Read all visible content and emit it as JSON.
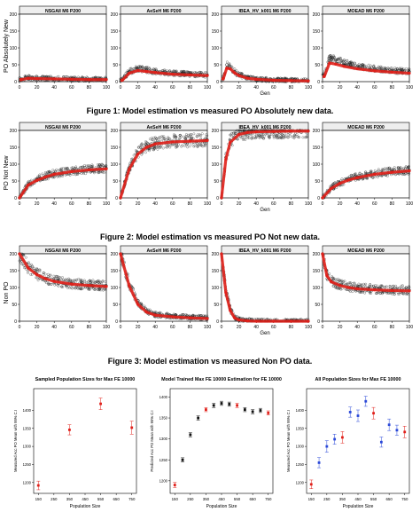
{
  "figures": [
    {
      "caption": "Figure 1: Model estimation vs measured PO Absolutely new data.",
      "ylabel": "PO Absolutely New"
    },
    {
      "caption": "Figure 2: Model estimation vs measured PO Not new data.",
      "ylabel": "PO Not New"
    },
    {
      "caption": "Figure 3: Model estimation vs measured Non PO data.",
      "ylabel": "Non PO"
    }
  ],
  "chart_data": [
    {
      "type": "scatter",
      "figure": 1,
      "title": "NSGAII M6  P200",
      "xlabel": "",
      "ylabel": "PO Absolutely New",
      "xlim": [
        0,
        100
      ],
      "ylim": [
        0,
        200
      ],
      "xticks": [
        0,
        20,
        40,
        60,
        80,
        100
      ],
      "yticks": [
        0,
        50,
        100,
        150,
        200
      ],
      "series": [
        {
          "kind": "measured",
          "x": [
            2,
            10,
            20,
            40,
            60,
            80,
            100
          ],
          "y": [
            8,
            12,
            10,
            9,
            8,
            7,
            7
          ]
        },
        {
          "kind": "model",
          "x": [
            2,
            10,
            20,
            40,
            60,
            80,
            100
          ],
          "y": [
            6,
            10,
            9,
            8,
            7,
            6,
            6
          ]
        }
      ]
    },
    {
      "type": "scatter",
      "figure": 1,
      "title": "AeSeH M6  P200",
      "xlabel": "",
      "ylabel": "",
      "xlim": [
        0,
        100
      ],
      "ylim": [
        0,
        200
      ],
      "xticks": [
        0,
        20,
        40,
        60,
        80,
        100
      ],
      "yticks": [
        0,
        50,
        100,
        150,
        200
      ],
      "series": [
        {
          "kind": "measured",
          "x": [
            2,
            10,
            20,
            30,
            40,
            60,
            80,
            100
          ],
          "y": [
            5,
            30,
            38,
            35,
            30,
            25,
            22,
            20
          ]
        },
        {
          "kind": "model",
          "x": [
            2,
            10,
            20,
            30,
            40,
            60,
            80,
            100
          ],
          "y": [
            4,
            25,
            33,
            30,
            27,
            22,
            20,
            18
          ]
        }
      ]
    },
    {
      "type": "scatter",
      "figure": 1,
      "title": "IBEA_HV_k001 M6  P200",
      "xlabel": "Gen",
      "ylabel": "",
      "xlim": [
        0,
        100
      ],
      "ylim": [
        0,
        200
      ],
      "xticks": [
        0,
        20,
        40,
        60,
        80,
        100
      ],
      "yticks": [
        0,
        50,
        100,
        150,
        200
      ],
      "series": [
        {
          "kind": "measured",
          "x": [
            2,
            6,
            10,
            15,
            20,
            30,
            40,
            60,
            80,
            100
          ],
          "y": [
            10,
            50,
            45,
            30,
            20,
            12,
            8,
            5,
            4,
            3
          ]
        },
        {
          "kind": "model",
          "x": [
            2,
            6,
            10,
            15,
            20,
            30,
            40,
            60,
            80,
            100
          ],
          "y": [
            8,
            40,
            38,
            26,
            18,
            10,
            7,
            4,
            3,
            2
          ]
        }
      ]
    },
    {
      "type": "scatter",
      "figure": 1,
      "title": "MOEAD M6  P200",
      "xlabel": "",
      "ylabel": "",
      "xlim": [
        0,
        100
      ],
      "ylim": [
        0,
        200
      ],
      "xticks": [
        0,
        20,
        40,
        60,
        80,
        100
      ],
      "yticks": [
        0,
        50,
        100,
        150,
        200
      ],
      "series": [
        {
          "kind": "measured",
          "x": [
            2,
            8,
            15,
            25,
            40,
            60,
            80,
            100
          ],
          "y": [
            20,
            70,
            65,
            55,
            45,
            38,
            33,
            30
          ]
        },
        {
          "kind": "model",
          "x": [
            2,
            8,
            15,
            25,
            40,
            60,
            80,
            100
          ],
          "y": [
            15,
            55,
            52,
            45,
            38,
            32,
            28,
            25
          ]
        }
      ]
    },
    {
      "type": "scatter",
      "figure": 2,
      "title": "NSGAII M6  P200",
      "xlabel": "",
      "ylabel": "PO Not New",
      "xlim": [
        0,
        100
      ],
      "ylim": [
        0,
        200
      ],
      "xticks": [
        0,
        20,
        40,
        60,
        80,
        100
      ],
      "yticks": [
        0,
        50,
        100,
        150,
        200
      ],
      "series": [
        {
          "kind": "measured",
          "x": [
            0,
            10,
            20,
            30,
            40,
            60,
            80,
            100
          ],
          "y": [
            0,
            40,
            55,
            65,
            72,
            80,
            85,
            88
          ]
        },
        {
          "kind": "model",
          "x": [
            0,
            10,
            20,
            30,
            40,
            60,
            80,
            100
          ],
          "y": [
            0,
            38,
            52,
            62,
            70,
            78,
            83,
            86
          ]
        }
      ]
    },
    {
      "type": "scatter",
      "figure": 2,
      "title": "AeSeH M6  P200",
      "xlabel": "",
      "ylabel": "",
      "xlim": [
        0,
        100
      ],
      "ylim": [
        0,
        200
      ],
      "xticks": [
        0,
        20,
        40,
        60,
        80,
        100
      ],
      "yticks": [
        0,
        50,
        100,
        150,
        200
      ],
      "series": [
        {
          "kind": "measured",
          "x": [
            0,
            10,
            20,
            30,
            40,
            60,
            80,
            100
          ],
          "y": [
            0,
            90,
            135,
            155,
            162,
            168,
            170,
            172
          ]
        },
        {
          "kind": "model",
          "x": [
            0,
            10,
            20,
            30,
            40,
            60,
            80,
            100
          ],
          "y": [
            0,
            85,
            130,
            150,
            160,
            166,
            168,
            170
          ]
        }
      ]
    },
    {
      "type": "scatter",
      "figure": 2,
      "title": "IBEA_HV_k001 M6  P200",
      "xlabel": "Gen",
      "ylabel": "",
      "xlim": [
        0,
        100
      ],
      "ylim": [
        0,
        200
      ],
      "xticks": [
        0,
        20,
        40,
        60,
        80,
        100
      ],
      "yticks": [
        0,
        50,
        100,
        150,
        200
      ],
      "series": [
        {
          "kind": "measured",
          "x": [
            0,
            5,
            10,
            20,
            30,
            40,
            60,
            80,
            100
          ],
          "y": [
            0,
            120,
            170,
            190,
            195,
            197,
            198,
            199,
            199
          ]
        },
        {
          "kind": "model",
          "x": [
            0,
            5,
            10,
            20,
            30,
            40,
            60,
            80,
            100
          ],
          "y": [
            0,
            115,
            165,
            188,
            194,
            196,
            197,
            198,
            198
          ]
        }
      ]
    },
    {
      "type": "scatter",
      "figure": 2,
      "title": "MOEAD M6  P200",
      "xlabel": "",
      "ylabel": "",
      "xlim": [
        0,
        100
      ],
      "ylim": [
        0,
        200
      ],
      "xticks": [
        0,
        20,
        40,
        60,
        80,
        100
      ],
      "yticks": [
        0,
        50,
        100,
        150,
        200
      ],
      "series": [
        {
          "kind": "measured",
          "x": [
            0,
            10,
            20,
            30,
            40,
            60,
            80,
            100
          ],
          "y": [
            0,
            30,
            45,
            55,
            62,
            72,
            78,
            82
          ]
        },
        {
          "kind": "model",
          "x": [
            0,
            10,
            20,
            30,
            40,
            60,
            80,
            100
          ],
          "y": [
            0,
            28,
            43,
            53,
            60,
            70,
            76,
            80
          ]
        }
      ]
    },
    {
      "type": "scatter",
      "figure": 3,
      "title": "NSGAII M6  P200",
      "xlabel": "",
      "ylabel": "Non PO",
      "xlim": [
        0,
        100
      ],
      "ylim": [
        0,
        200
      ],
      "xticks": [
        0,
        20,
        40,
        60,
        80,
        100
      ],
      "yticks": [
        0,
        50,
        100,
        150,
        200
      ],
      "series": [
        {
          "kind": "measured",
          "x": [
            0,
            10,
            20,
            30,
            40,
            60,
            80,
            100
          ],
          "y": [
            200,
            160,
            140,
            128,
            120,
            112,
            108,
            105
          ]
        },
        {
          "kind": "model",
          "x": [
            0,
            10,
            20,
            30,
            40,
            60,
            80,
            100
          ],
          "y": [
            200,
            158,
            138,
            126,
            118,
            110,
            106,
            103
          ]
        }
      ]
    },
    {
      "type": "scatter",
      "figure": 3,
      "title": "AeSeH M6  P200",
      "xlabel": "",
      "ylabel": "",
      "xlim": [
        0,
        100
      ],
      "ylim": [
        0,
        200
      ],
      "xticks": [
        0,
        20,
        40,
        60,
        80,
        100
      ],
      "yticks": [
        0,
        50,
        100,
        150,
        200
      ],
      "series": [
        {
          "kind": "measured",
          "x": [
            0,
            10,
            20,
            30,
            40,
            60,
            80,
            100
          ],
          "y": [
            200,
            110,
            55,
            30,
            20,
            15,
            12,
            10
          ]
        },
        {
          "kind": "model",
          "x": [
            0,
            10,
            20,
            30,
            40,
            60,
            80,
            100
          ],
          "y": [
            200,
            105,
            50,
            27,
            18,
            13,
            10,
            8
          ]
        }
      ]
    },
    {
      "type": "scatter",
      "figure": 3,
      "title": "IBEA_HV_k001 M6  P200",
      "xlabel": "Gen",
      "ylabel": "",
      "xlim": [
        0,
        100
      ],
      "ylim": [
        0,
        200
      ],
      "xticks": [
        0,
        20,
        40,
        60,
        80,
        100
      ],
      "yticks": [
        0,
        50,
        100,
        150,
        200
      ],
      "series": [
        {
          "kind": "measured",
          "x": [
            0,
            5,
            10,
            15,
            20,
            30,
            40,
            60,
            80,
            100
          ],
          "y": [
            200,
            90,
            35,
            12,
            5,
            2,
            1,
            0,
            0,
            0
          ]
        },
        {
          "kind": "model",
          "x": [
            0,
            5,
            10,
            15,
            20,
            30,
            40,
            60,
            80,
            100
          ],
          "y": [
            200,
            85,
            32,
            10,
            4,
            1,
            0,
            0,
            0,
            0
          ]
        }
      ]
    },
    {
      "type": "scatter",
      "figure": 3,
      "title": "MOEAD M6  P200",
      "xlabel": "",
      "ylabel": "",
      "xlim": [
        0,
        100
      ],
      "ylim": [
        0,
        200
      ],
      "xticks": [
        0,
        20,
        40,
        60,
        80,
        100
      ],
      "yticks": [
        0,
        50,
        100,
        150,
        200
      ],
      "series": [
        {
          "kind": "measured",
          "x": [
            0,
            5,
            10,
            20,
            30,
            40,
            60,
            80,
            100
          ],
          "y": [
            200,
            140,
            120,
            108,
            102,
            98,
            95,
            93,
            92
          ]
        },
        {
          "kind": "model",
          "x": [
            0,
            5,
            10,
            20,
            30,
            40,
            60,
            80,
            100
          ],
          "y": [
            200,
            135,
            117,
            106,
            100,
            96,
            93,
            91,
            90
          ]
        }
      ]
    },
    {
      "type": "scatter",
      "figure": 4,
      "title": "Sampled Population Sizes for Max FE 10000",
      "xlabel": "Population Size",
      "ylabel": "Measured Acc PO Mean with 95% C.I",
      "xlim": [
        120,
        780
      ],
      "ylim": [
        1170,
        1460
      ],
      "xticks": [
        150,
        250,
        350,
        450,
        550,
        650,
        750
      ],
      "yticks": [
        1200,
        1250,
        1300,
        1350,
        1400
      ],
      "points": [
        {
          "x": 150,
          "y": 1192,
          "err": 12,
          "color": "red"
        },
        {
          "x": 350,
          "y": 1346,
          "err": 14,
          "color": "red"
        },
        {
          "x": 550,
          "y": 1418,
          "err": 16,
          "color": "red"
        },
        {
          "x": 750,
          "y": 1352,
          "err": 18,
          "color": "red"
        }
      ]
    },
    {
      "type": "scatter",
      "figure": 4,
      "title": "Model Trained Max FE 10000 Estimation for FE 10000",
      "xlabel": "Population Size",
      "ylabel": "Predicted Acc PO Mean with 95% C.I",
      "xlim": [
        120,
        780
      ],
      "ylim": [
        1170,
        1420
      ],
      "xticks": [
        150,
        250,
        350,
        450,
        550,
        650,
        750
      ],
      "yticks": [
        1200,
        1250,
        1300,
        1350,
        1400
      ],
      "points": [
        {
          "x": 150,
          "y": 1190,
          "err": 6,
          "color": "red"
        },
        {
          "x": 200,
          "y": 1250,
          "err": 5,
          "color": "black"
        },
        {
          "x": 250,
          "y": 1310,
          "err": 5,
          "color": "black"
        },
        {
          "x": 300,
          "y": 1350,
          "err": 5,
          "color": "black"
        },
        {
          "x": 350,
          "y": 1370,
          "err": 5,
          "color": "red"
        },
        {
          "x": 400,
          "y": 1380,
          "err": 5,
          "color": "black"
        },
        {
          "x": 450,
          "y": 1385,
          "err": 5,
          "color": "black"
        },
        {
          "x": 500,
          "y": 1383,
          "err": 5,
          "color": "black"
        },
        {
          "x": 550,
          "y": 1380,
          "err": 5,
          "color": "red"
        },
        {
          "x": 600,
          "y": 1370,
          "err": 5,
          "color": "black"
        },
        {
          "x": 650,
          "y": 1365,
          "err": 5,
          "color": "black"
        },
        {
          "x": 700,
          "y": 1368,
          "err": 5,
          "color": "black"
        },
        {
          "x": 750,
          "y": 1362,
          "err": 5,
          "color": "red"
        }
      ]
    },
    {
      "type": "scatter",
      "figure": 4,
      "title": "All Population Sizes for Max FE 10000",
      "xlabel": "Population Size",
      "ylabel": "Measured Acc PO Mean with 95% C.I",
      "xlim": [
        120,
        780
      ],
      "ylim": [
        1170,
        1460
      ],
      "xticks": [
        150,
        250,
        350,
        450,
        550,
        650,
        750
      ],
      "yticks": [
        1200,
        1250,
        1300,
        1350,
        1400
      ],
      "points": [
        {
          "x": 150,
          "y": 1195,
          "err": 12,
          "color": "red"
        },
        {
          "x": 200,
          "y": 1255,
          "err": 14,
          "color": "blue"
        },
        {
          "x": 250,
          "y": 1300,
          "err": 16,
          "color": "blue"
        },
        {
          "x": 300,
          "y": 1320,
          "err": 14,
          "color": "blue"
        },
        {
          "x": 350,
          "y": 1325,
          "err": 16,
          "color": "red"
        },
        {
          "x": 400,
          "y": 1395,
          "err": 14,
          "color": "blue"
        },
        {
          "x": 450,
          "y": 1385,
          "err": 16,
          "color": "blue"
        },
        {
          "x": 500,
          "y": 1425,
          "err": 14,
          "color": "blue"
        },
        {
          "x": 550,
          "y": 1392,
          "err": 16,
          "color": "red"
        },
        {
          "x": 600,
          "y": 1312,
          "err": 14,
          "color": "blue"
        },
        {
          "x": 650,
          "y": 1360,
          "err": 16,
          "color": "blue"
        },
        {
          "x": 700,
          "y": 1345,
          "err": 14,
          "color": "blue"
        },
        {
          "x": 750,
          "y": 1340,
          "err": 16,
          "color": "red"
        }
      ]
    }
  ],
  "colors": {
    "measured": "#222222",
    "model": "#e0201a",
    "red": "#e0201a",
    "black": "#111111",
    "blue": "#2a48d8",
    "axis": "#000000"
  }
}
